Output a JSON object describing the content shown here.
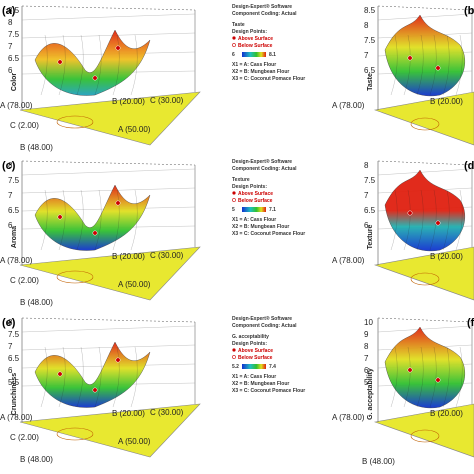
{
  "chart_data": [
    {
      "type": "surface",
      "panel_label": "(a)",
      "zlabel": "Color",
      "zticks": [
        "8.5",
        "8",
        "7.5",
        "7",
        "6.5",
        "6"
      ],
      "vertex_labels": [
        "A (78.00)",
        "B (20.00)",
        "C (30.00)",
        "C (2.00)",
        "A (50.00)",
        "B (48.00)"
      ],
      "legend": {
        "software": "Design-Expert® Software",
        "coding": "Component Coding: Actual",
        "response": "Taste",
        "design_points": "Design Points:",
        "above": "Above Surface",
        "below": "Below Surface",
        "scale_min": "6",
        "scale_max": "8.1",
        "x1": "X1 = A: Cass Flour",
        "x2": "X2 = B: Mungbean Flour",
        "x3": "X3 = C: Coconut Pomace Flour"
      }
    },
    {
      "type": "surface",
      "panel_label": "(b)",
      "zlabel": "Taste",
      "zticks": [
        "8.5",
        "8",
        "7.5",
        "7",
        "6.5"
      ],
      "vertex_labels": [
        "A (78.00)",
        "B (20.00)"
      ]
    },
    {
      "type": "surface",
      "panel_label": "(c)",
      "zlabel": "Aroma",
      "zticks": [
        "8",
        "7.5",
        "7",
        "6.5",
        "6"
      ],
      "vertex_labels": [
        "A (78.00)",
        "B (20.00)",
        "C (30.00)",
        "C (2.00)",
        "A (50.00)",
        "B (48.00)"
      ],
      "legend": {
        "software": "Design-Expert® Software",
        "coding": "Component Coding: Actual",
        "response": "Texture",
        "design_points": "Design Points:",
        "above": "Above Surface",
        "below": "Below Surface",
        "scale_min": "5",
        "scale_max": "7.1",
        "x1": "X1 = A: Cass Flour",
        "x2": "X2 = B: Mungbean Flour",
        "x3": "X3 = C: Coconut Pomace Flour"
      }
    },
    {
      "type": "surface",
      "panel_label": "(d)",
      "zlabel": "Texture",
      "zticks": [
        "8",
        "7.5",
        "7",
        "6.5",
        "6"
      ],
      "vertex_labels": [
        "A (78.00)",
        "B (20.00)"
      ]
    },
    {
      "type": "surface",
      "panel_label": "(e)",
      "zlabel": "Crunchiness",
      "zticks": [
        "8",
        "7.5",
        "7",
        "6.5",
        "6",
        "5.5"
      ],
      "vertex_labels": [
        "A (78.00)",
        "B (20.00)",
        "C (30.00)",
        "C (2.00)",
        "A (50.00)",
        "B (48.00)"
      ],
      "legend": {
        "software": "Design-Expert® Software",
        "coding": "Component Coding: Actual",
        "response": "G. acceptability",
        "design_points": "Design Points:",
        "above": "Above Surface",
        "below": "Below Surface",
        "scale_min": "5.2",
        "scale_max": "7.4",
        "x1": "X1 = A: Cass Flour",
        "x2": "X2 = B: Mungbean Flour",
        "x3": "X3 = C: Coconut Pomace Flour"
      }
    },
    {
      "type": "surface",
      "panel_label": "(f)",
      "zlabel": "G. acceptability",
      "zticks": [
        "10",
        "9",
        "8",
        "7",
        "6",
        "5"
      ],
      "vertex_labels": [
        "A (78.00)",
        "B (20.00)",
        "B (48.00)"
      ]
    }
  ],
  "colors": {
    "base_fill": "#e8e830",
    "surface_high": "#e02010",
    "surface_mid": "#30c030",
    "surface_low": "#1030d0",
    "box_line": "#555555"
  }
}
